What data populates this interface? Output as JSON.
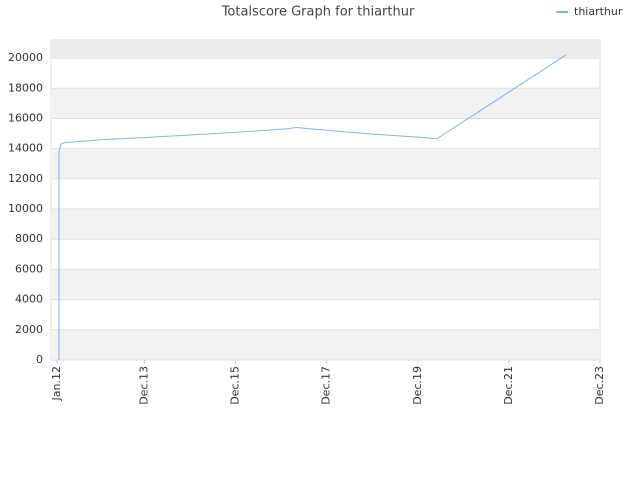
{
  "chart_data": {
    "type": "line",
    "title": "Totalscore Graph for thiarthur",
    "series": [
      {
        "name": "thiarthur",
        "color": "#7cb5ec",
        "x": [
          0.5,
          0.5,
          1,
          2,
          12,
          24,
          48,
          60,
          63,
          72,
          84,
          96,
          100,
          134
        ],
        "values": [
          0,
          13800,
          14300,
          14400,
          14600,
          14750,
          15100,
          15300,
          15400,
          15200,
          14950,
          14750,
          14650,
          20200
        ]
      }
    ],
    "xlim": [
      -1.6,
      143
    ],
    "xticks": [
      {
        "value": 0,
        "label": "Jan.12"
      },
      {
        "value": 23,
        "label": "Dec.13"
      },
      {
        "value": 47,
        "label": "Dec.15"
      },
      {
        "value": 71,
        "label": "Dec.17"
      },
      {
        "value": 95,
        "label": "Dec.19"
      },
      {
        "value": 119,
        "label": "Dec.21"
      },
      {
        "value": 143,
        "label": "Dec.23"
      }
    ],
    "ylim": [
      0,
      21200
    ],
    "yticks": [
      0,
      2000,
      4000,
      6000,
      8000,
      10000,
      12000,
      14000,
      16000,
      18000,
      20000
    ],
    "grid": true,
    "legend": "top-right"
  }
}
